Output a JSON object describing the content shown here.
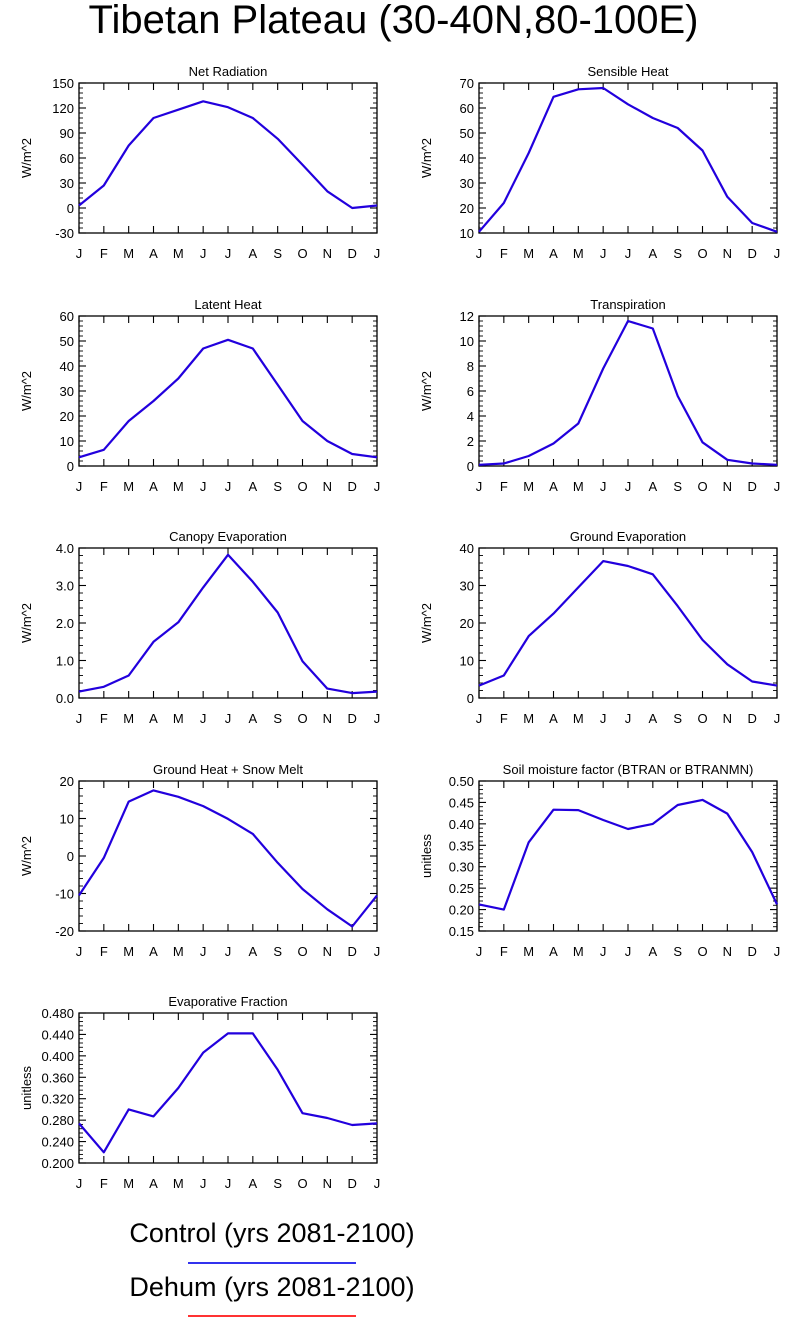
{
  "title": "Tibetan Plateau (30-40N,80-100E)",
  "legend": [
    {
      "label": "Control (yrs 2081-2100)",
      "color": "#3333ee"
    },
    {
      "label": "Dehum (yrs 2081-2100)",
      "color": "#ff3333"
    }
  ],
  "chart_data": [
    {
      "type": "line",
      "title": "Net Radiation",
      "ylabel": "W/m^2",
      "categories": [
        "J",
        "F",
        "M",
        "A",
        "M",
        "J",
        "J",
        "A",
        "S",
        "O",
        "N",
        "D",
        "J"
      ],
      "ylim": [
        -30,
        150
      ],
      "yticks": [
        -30,
        0,
        30,
        60,
        90,
        120,
        150
      ],
      "ytick_labels": [
        "-30",
        "0",
        "30",
        "60",
        "90",
        "120",
        "150"
      ],
      "series": [
        {
          "name": "Control (yrs 2081-2100)",
          "color": "#2200dd",
          "values": [
            3,
            27,
            75,
            108,
            118,
            128,
            121,
            108,
            83,
            52,
            20,
            0,
            3
          ]
        }
      ]
    },
    {
      "type": "line",
      "title": "Sensible Heat",
      "ylabel": "W/m^2",
      "categories": [
        "J",
        "F",
        "M",
        "A",
        "M",
        "J",
        "J",
        "A",
        "S",
        "O",
        "N",
        "D",
        "J"
      ],
      "ylim": [
        10,
        70
      ],
      "yticks": [
        10,
        20,
        30,
        40,
        50,
        60,
        70
      ],
      "ytick_labels": [
        "10",
        "20",
        "30",
        "40",
        "50",
        "60",
        "70"
      ],
      "series": [
        {
          "name": "Control (yrs 2081-2100)",
          "color": "#2200dd",
          "values": [
            10.5,
            22,
            42,
            64.5,
            67.5,
            68,
            61.5,
            56,
            52,
            43,
            24.5,
            14,
            10.5
          ]
        }
      ]
    },
    {
      "type": "line",
      "title": "Latent Heat",
      "ylabel": "W/m^2",
      "categories": [
        "J",
        "F",
        "M",
        "A",
        "M",
        "J",
        "J",
        "A",
        "S",
        "O",
        "N",
        "D",
        "J"
      ],
      "ylim": [
        0,
        60
      ],
      "yticks": [
        0,
        10,
        20,
        30,
        40,
        50,
        60
      ],
      "ytick_labels": [
        "0",
        "10",
        "20",
        "30",
        "40",
        "50",
        "60"
      ],
      "series": [
        {
          "name": "Control (yrs 2081-2100)",
          "color": "#2200dd",
          "values": [
            3.5,
            6.5,
            18,
            26,
            35,
            47,
            50.5,
            47,
            32.5,
            18,
            10,
            4.8,
            3.5
          ]
        }
      ]
    },
    {
      "type": "line",
      "title": "Transpiration",
      "ylabel": "W/m^2",
      "categories": [
        "J",
        "F",
        "M",
        "A",
        "M",
        "J",
        "J",
        "A",
        "S",
        "O",
        "N",
        "D",
        "J"
      ],
      "ylim": [
        0,
        12
      ],
      "yticks": [
        0,
        2,
        4,
        6,
        8,
        10,
        12
      ],
      "ytick_labels": [
        "0",
        "2",
        "4",
        "6",
        "8",
        "10",
        "12"
      ],
      "series": [
        {
          "name": "Control (yrs 2081-2100)",
          "color": "#2200dd",
          "values": [
            0.1,
            0.2,
            0.8,
            1.8,
            3.4,
            7.8,
            11.6,
            11,
            5.6,
            1.9,
            0.5,
            0.2,
            0.1
          ]
        }
      ]
    },
    {
      "type": "line",
      "title": "Canopy Evaporation",
      "ylabel": "W/m^2",
      "categories": [
        "J",
        "F",
        "M",
        "A",
        "M",
        "J",
        "J",
        "A",
        "S",
        "O",
        "N",
        "D",
        "J"
      ],
      "ylim": [
        0,
        4
      ],
      "yticks": [
        0,
        1,
        2,
        3,
        4
      ],
      "ytick_labels": [
        "0.0",
        "1.0",
        "2.0",
        "3.0",
        "4.0"
      ],
      "series": [
        {
          "name": "Control (yrs 2081-2100)",
          "color": "#2200dd",
          "values": [
            0.17,
            0.3,
            0.6,
            1.5,
            2.02,
            2.95,
            3.82,
            3.1,
            2.28,
            0.98,
            0.25,
            0.13,
            0.17
          ]
        }
      ]
    },
    {
      "type": "line",
      "title": "Ground Evaporation",
      "ylabel": "W/m^2",
      "categories": [
        "J",
        "F",
        "M",
        "A",
        "M",
        "J",
        "J",
        "A",
        "S",
        "O",
        "N",
        "D",
        "J"
      ],
      "ylim": [
        0,
        40
      ],
      "yticks": [
        0,
        10,
        20,
        30,
        40
      ],
      "ytick_labels": [
        "0",
        "10",
        "20",
        "30",
        "40"
      ],
      "series": [
        {
          "name": "Control (yrs 2081-2100)",
          "color": "#2200dd",
          "values": [
            3.3,
            6,
            16.5,
            22.5,
            29.5,
            36.5,
            35.2,
            33,
            24.5,
            15.5,
            9,
            4.4,
            3.3
          ]
        }
      ]
    },
    {
      "type": "line",
      "title": "Ground Heat + Snow Melt",
      "ylabel": "W/m^2",
      "categories": [
        "J",
        "F",
        "M",
        "A",
        "M",
        "J",
        "J",
        "A",
        "S",
        "O",
        "N",
        "D",
        "J"
      ],
      "ylim": [
        -20,
        20
      ],
      "yticks": [
        -20,
        -10,
        0,
        10,
        20
      ],
      "ytick_labels": [
        "-20",
        "-10",
        "0",
        "10",
        "20"
      ],
      "series": [
        {
          "name": "Control (yrs 2081-2100)",
          "color": "#2200dd",
          "values": [
            -10.5,
            -0.5,
            14.5,
            17.5,
            15.8,
            13.3,
            9.9,
            5.9,
            -1.8,
            -8.8,
            -14.2,
            -18.8,
            -10.5
          ]
        }
      ]
    },
    {
      "type": "line",
      "title": "Soil moisture factor (BTRAN or BTRANMN)",
      "ylabel": "unitless",
      "categories": [
        "J",
        "F",
        "M",
        "A",
        "M",
        "J",
        "J",
        "A",
        "S",
        "O",
        "N",
        "D",
        "J"
      ],
      "ylim": [
        0.15,
        0.5
      ],
      "yticks": [
        0.15,
        0.2,
        0.25,
        0.3,
        0.35,
        0.4,
        0.45,
        0.5
      ],
      "ytick_labels": [
        "0.15",
        "0.20",
        "0.25",
        "0.30",
        "0.35",
        "0.40",
        "0.45",
        "0.50"
      ],
      "series": [
        {
          "name": "Control (yrs 2081-2100)",
          "color": "#2200dd",
          "values": [
            0.212,
            0.2,
            0.357,
            0.433,
            0.432,
            0.409,
            0.388,
            0.4,
            0.444,
            0.456,
            0.424,
            0.334,
            0.212
          ]
        }
      ]
    },
    {
      "type": "line",
      "title": "Evaporative Fraction",
      "ylabel": "unitless",
      "categories": [
        "J",
        "F",
        "M",
        "A",
        "M",
        "J",
        "J",
        "A",
        "S",
        "O",
        "N",
        "D",
        "J"
      ],
      "ylim": [
        0.2,
        0.48
      ],
      "yticks": [
        0.2,
        0.24,
        0.28,
        0.32,
        0.36,
        0.4,
        0.44,
        0.48
      ],
      "ytick_labels": [
        "0.200",
        "0.240",
        "0.280",
        "0.320",
        "0.360",
        "0.400",
        "0.440",
        "0.480"
      ],
      "series": [
        {
          "name": "Control (yrs 2081-2100)",
          "color": "#2200dd",
          "values": [
            0.274,
            0.22,
            0.3,
            0.287,
            0.34,
            0.406,
            0.442,
            0.442,
            0.374,
            0.293,
            0.284,
            0.271,
            0.274
          ]
        }
      ]
    }
  ]
}
